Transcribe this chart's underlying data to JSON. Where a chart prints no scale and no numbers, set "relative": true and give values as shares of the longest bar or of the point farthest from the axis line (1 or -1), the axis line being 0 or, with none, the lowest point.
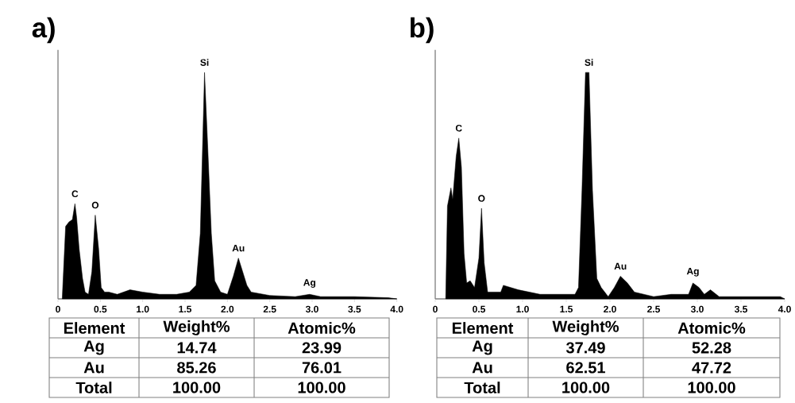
{
  "chart_data": [
    {
      "type": "area",
      "title": "a)",
      "relative": true,
      "xlim": [
        0,
        4
      ],
      "xticks": [
        0,
        0.5,
        {
          "value": 1,
          "label": "1.0"
        },
        1.5,
        {
          "value": 2,
          "label": "2.0"
        },
        2.5,
        {
          "value": 3,
          "label": "3.0"
        },
        3.5,
        {
          "value": 4,
          "label": "4.0"
        }
      ],
      "series": [
        {
          "color": "#000000",
          "x": [
            0.05,
            0.09,
            0.13,
            0.17,
            0.2,
            0.22,
            0.25,
            0.29,
            0.32,
            0.36,
            0.4,
            0.44,
            0.48,
            0.51,
            0.55,
            0.6,
            0.7,
            0.85,
            1.0,
            1.2,
            1.4,
            1.55,
            1.63,
            1.68,
            1.73,
            1.77,
            1.81,
            1.85,
            1.92,
            2.0,
            2.07,
            2.13,
            2.18,
            2.23,
            2.28,
            2.5,
            2.8,
            2.97,
            3.1,
            3.5,
            3.9,
            4.0
          ],
          "values": [
            0,
            0.32,
            0.34,
            0.35,
            0.42,
            0.36,
            0.22,
            0.09,
            0.03,
            0.02,
            0.12,
            0.37,
            0.22,
            0.05,
            0.03,
            0.03,
            0.02,
            0.04,
            0.03,
            0.02,
            0.02,
            0.03,
            0.06,
            0.29,
            1.0,
            0.65,
            0.29,
            0.08,
            0.03,
            0.02,
            0.1,
            0.18,
            0.12,
            0.06,
            0.03,
            0.015,
            0.01,
            0.02,
            0.01,
            0.01,
            0.005,
            0
          ]
        }
      ],
      "annotations": [
        {
          "text": "C",
          "x": 0.2,
          "y": 0.42
        },
        {
          "text": "O",
          "x": 0.44,
          "y": 0.37
        },
        {
          "text": "Si",
          "x": 1.73,
          "y": 1.0
        },
        {
          "text": "Au",
          "x": 2.13,
          "y": 0.18
        },
        {
          "text": "Ag",
          "x": 2.97,
          "y": 0.02
        },
        "Element",
        "Weight%",
        "Atomic%",
        "Ag",
        "14.74",
        "23.99",
        "Au",
        "85.26",
        "76.01",
        "Total",
        "100.00",
        "100.00"
      ]
    },
    {
      "type": "area",
      "title": "b)",
      "relative": true,
      "xlim": [
        0,
        4
      ],
      "xticks": [
        0,
        0.5,
        {
          "value": 1,
          "label": "1.0"
        },
        1.5,
        {
          "value": 2,
          "label": "2.0"
        },
        2.5,
        {
          "value": 3,
          "label": "3.0"
        },
        3.5,
        {
          "value": 4,
          "label": "4.0"
        }
      ],
      "series": [
        {
          "color": "#000000",
          "x": [
            0.12,
            0.14,
            0.18,
            0.2,
            0.24,
            0.27,
            0.3,
            0.33,
            0.36,
            0.4,
            0.45,
            0.5,
            0.53,
            0.56,
            0.6,
            0.75,
            0.78,
            0.95,
            1.2,
            1.4,
            1.6,
            1.64,
            1.68,
            1.72,
            1.76,
            1.8,
            1.85,
            1.9,
            1.98,
            2.05,
            2.12,
            2.2,
            2.28,
            2.5,
            2.7,
            2.9,
            2.95,
            3.02,
            3.08,
            3.15,
            3.25,
            3.6,
            3.95,
            4.0
          ],
          "values": [
            0,
            0.41,
            0.49,
            0.44,
            0.63,
            0.71,
            0.58,
            0.2,
            0.07,
            0.08,
            0.05,
            0.18,
            0.4,
            0.16,
            0.03,
            0.03,
            0.06,
            0.04,
            0.02,
            0.02,
            0.02,
            0.05,
            0.48,
            1.0,
            1.0,
            0.48,
            0.09,
            0.05,
            0.01,
            0.05,
            0.1,
            0.07,
            0.03,
            0.01,
            0.02,
            0.02,
            0.07,
            0.05,
            0.02,
            0.04,
            0.01,
            0.01,
            0.01,
            0
          ]
        }
      ],
      "annotations": [
        {
          "text": "C",
          "x": 0.27,
          "y": 0.71
        },
        {
          "text": "O",
          "x": 0.53,
          "y": 0.4
        },
        {
          "text": "Si",
          "x": 1.76,
          "y": 1.0
        },
        {
          "text": "Au",
          "x": 2.12,
          "y": 0.1
        },
        {
          "text": "Ag",
          "x": 2.95,
          "y": 0.07
        },
        "Element",
        "Weight%",
        "Atomic%",
        "Ag",
        "37.49",
        "52.28",
        "Au",
        "62.51",
        "47.72",
        "Total",
        "100.00",
        "100.00"
      ]
    }
  ]
}
